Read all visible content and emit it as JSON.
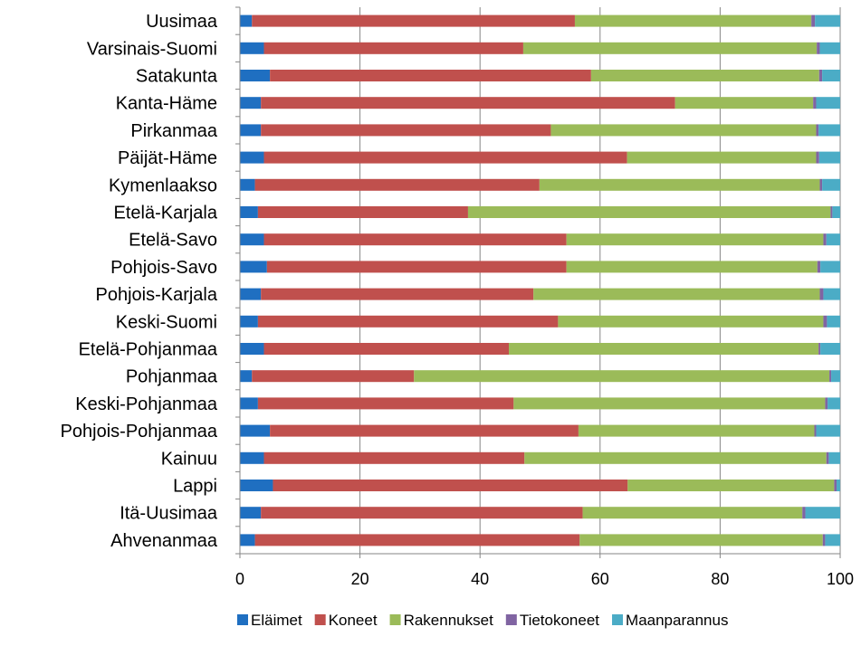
{
  "chart_data": {
    "type": "bar",
    "orientation": "horizontal",
    "stacked": true,
    "categories": [
      "Uusimaa",
      "Varsinais-Suomi",
      "Satakunta",
      "Kanta-Häme",
      "Pirkanmaa",
      "Päijät-Häme",
      "Kymenlaakso",
      "Etelä-Karjala",
      "Etelä-Savo",
      "Pohjois-Savo",
      "Pohjois-Karjala",
      "Keski-Suomi",
      "Etelä-Pohjanmaa",
      "Pohjanmaa",
      "Keski-Pohjanmaa",
      "Pohjois-Pohjanmaa",
      "Kainuu",
      "Lappi",
      "Itä-Uusimaa",
      "Ahvenanmaa"
    ],
    "series": [
      {
        "name": "Eläimet",
        "color": "#1f6fc1",
        "values": [
          2.0,
          4.0,
          5.0,
          3.5,
          3.5,
          4.0,
          2.5,
          3.0,
          4.0,
          4.5,
          3.5,
          3.0,
          4.0,
          2.0,
          3.0,
          5.0,
          4.0,
          5.5,
          3.5,
          2.5
        ]
      },
      {
        "name": "Koneet",
        "color": "#c0504d",
        "values": [
          53.8,
          43.2,
          53.5,
          69.0,
          48.3,
          60.5,
          47.4,
          35.0,
          50.4,
          49.9,
          45.4,
          50.0,
          40.8,
          27.0,
          42.6,
          51.4,
          43.4,
          59.1,
          53.6,
          54.1
        ]
      },
      {
        "name": "Rakennukset",
        "color": "#9bbb59",
        "values": [
          39.4,
          48.9,
          38.0,
          23.0,
          44.2,
          31.5,
          46.7,
          60.4,
          42.8,
          41.8,
          47.7,
          44.2,
          51.6,
          69.2,
          51.9,
          39.3,
          50.3,
          34.4,
          36.6,
          40.5
        ]
      },
      {
        "name": "Tietokoneet",
        "color": "#8064a2",
        "values": [
          0.6,
          0.5,
          0.5,
          0.5,
          0.4,
          0.5,
          0.4,
          0.3,
          0.5,
          0.5,
          0.6,
          0.6,
          0.3,
          0.3,
          0.4,
          0.3,
          0.4,
          0.4,
          0.5,
          0.4
        ]
      },
      {
        "name": "Maanparannus",
        "color": "#4bacc6",
        "values": [
          4.2,
          3.4,
          3.0,
          4.0,
          3.6,
          3.5,
          3.0,
          1.3,
          2.3,
          3.3,
          2.8,
          2.2,
          3.3,
          1.5,
          2.1,
          4.0,
          1.9,
          0.6,
          5.8,
          2.5
        ]
      }
    ],
    "xlim": [
      0,
      100
    ],
    "xticks": [
      "0",
      "20",
      "40",
      "60",
      "80",
      "100"
    ],
    "grid": "vertical",
    "legend": "bottom"
  }
}
